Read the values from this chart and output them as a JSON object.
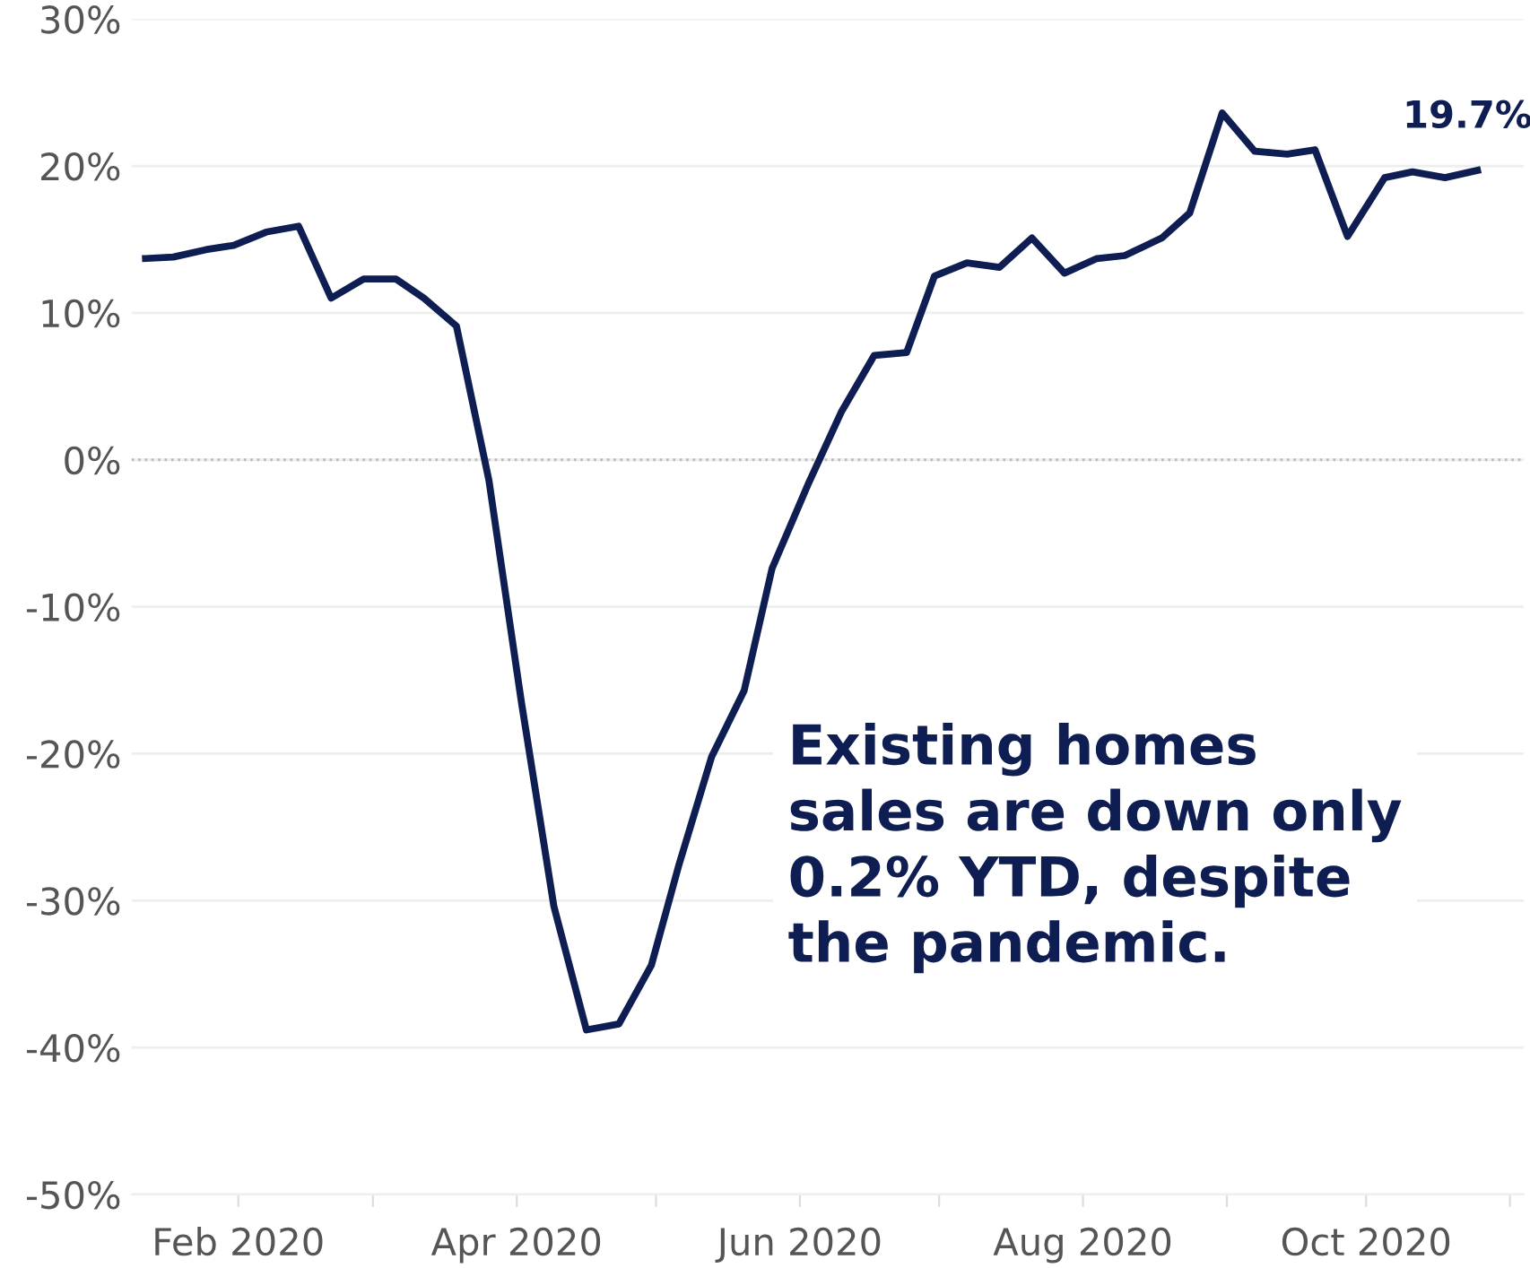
{
  "chart_data": {
    "type": "line",
    "x": [
      "2020-01-12",
      "2020-01-18",
      "2020-01-25",
      "2020-01-31",
      "2020-02-07",
      "2020-02-14",
      "2020-02-21",
      "2020-02-28",
      "2020-03-06",
      "2020-03-12",
      "2020-03-19",
      "2020-03-26",
      "2020-04-02",
      "2020-04-09",
      "2020-04-16",
      "2020-04-23",
      "2020-04-30",
      "2020-05-06",
      "2020-05-13",
      "2020-05-20",
      "2020-05-26",
      "2020-06-03",
      "2020-06-10",
      "2020-06-17",
      "2020-06-24",
      "2020-06-30",
      "2020-07-07",
      "2020-07-14",
      "2020-07-21",
      "2020-07-28",
      "2020-08-04",
      "2020-08-10",
      "2020-08-18",
      "2020-08-24",
      "2020-08-31",
      "2020-09-07",
      "2020-09-14",
      "2020-09-20",
      "2020-09-27",
      "2020-10-05",
      "2020-10-11",
      "2020-10-18",
      "2020-10-25"
    ],
    "series": [
      {
        "color": "#0e1d52",
        "values": [
          13.7,
          13.8,
          14.3,
          14.6,
          15.5,
          15.9,
          11.0,
          12.3,
          12.3,
          11.0,
          9.1,
          -1.4,
          -16.5,
          -30.4,
          -38.8,
          -38.4,
          -34.4,
          -27.5,
          -20.2,
          -15.7,
          -7.4,
          -1.5,
          3.3,
          7.1,
          7.3,
          12.5,
          13.4,
          13.1,
          15.1,
          12.7,
          13.7,
          13.9,
          15.1,
          16.8,
          23.6,
          21.0,
          20.8,
          21.1,
          15.2,
          19.2,
          19.6,
          19.2,
          19.7
        ]
      }
    ],
    "xlim": [
      "2020-01-09",
      "2020-11-04"
    ],
    "xticks": [
      {
        "value": "2020-02-01",
        "label": "Feb 2020"
      },
      {
        "value": "2020-03-01",
        "label": null
      },
      {
        "value": "2020-04-01",
        "label": "Apr 2020"
      },
      {
        "value": "2020-05-01",
        "label": null
      },
      {
        "value": "2020-06-01",
        "label": "Jun 2020"
      },
      {
        "value": "2020-07-01",
        "label": null
      },
      {
        "value": "2020-08-01",
        "label": "Aug 2020"
      },
      {
        "value": "2020-09-01",
        "label": null
      },
      {
        "value": "2020-10-01",
        "label": "Oct 2020"
      },
      {
        "value": "2020-11-01",
        "label": null
      }
    ],
    "ylim": [
      -50,
      30
    ],
    "yticks": [
      {
        "value": -50,
        "label": "-50%"
      },
      {
        "value": -40,
        "label": "-40%"
      },
      {
        "value": -30,
        "label": "-30%"
      },
      {
        "value": -20,
        "label": "-20%"
      },
      {
        "value": -10,
        "label": "-10%"
      },
      {
        "value": 0,
        "label": "0%"
      },
      {
        "value": 10,
        "label": "10%"
      },
      {
        "value": 20,
        "label": "20%"
      },
      {
        "value": 30,
        "label": "30%"
      }
    ],
    "grid": "y",
    "ref_lines": [
      {
        "axis": "y",
        "value": 0,
        "label": null,
        "color": "#bbbbbb",
        "line_style": "dotted"
      }
    ],
    "annotations": [
      {
        "text": "19.7%",
        "x": "2020-10-25",
        "y": 19.7
      },
      "Existing homes\nsales are down only\n0.2% YTD, despite\nthe pandemic."
    ],
    "legend": false,
    "marker": "none",
    "line_style": "solid"
  }
}
